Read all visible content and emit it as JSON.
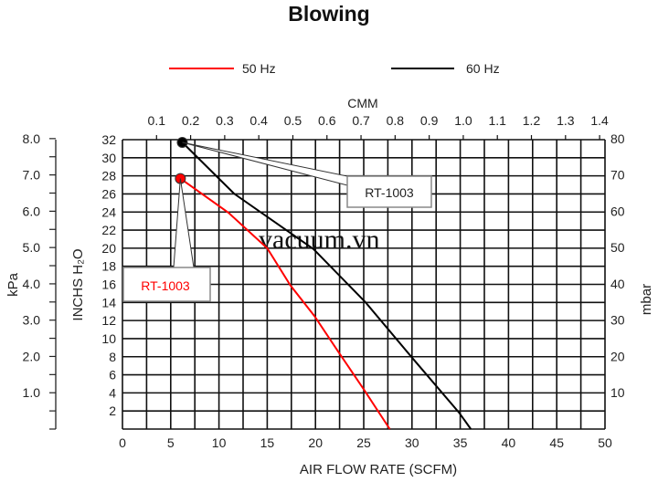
{
  "chart_data": {
    "type": "line",
    "title": "Blowing",
    "xlabel": "AIR FLOW RATE (SCFM)",
    "x2label": "CMM",
    "ylabel": "INCHS H2O",
    "ylabel_display": "INCHS H₂O",
    "y_left_outer_label": "kPa",
    "y_right_label": "mbar",
    "xlim": [
      0,
      50
    ],
    "ylim": [
      0,
      32
    ],
    "grid": true,
    "legend_placement": "top-center",
    "x_ticks": [
      "0",
      "5",
      "10",
      "15",
      "20",
      "25",
      "30",
      "35",
      "40",
      "45",
      "50"
    ],
    "x2_ticks": [
      "0.1",
      "0.2",
      "0.3",
      "0.4",
      "0.5",
      "0.6",
      "0.7",
      "0.8",
      "0.9",
      "1.0",
      "1.1",
      "1.2",
      "1.3",
      "1.4"
    ],
    "y_ticks": [
      "2",
      "4",
      "6",
      "8",
      "10",
      "12",
      "14",
      "16",
      "18",
      "20",
      "22",
      "24",
      "26",
      "28",
      "30",
      "32"
    ],
    "kpa_ticks": [
      "1.0",
      "2.0",
      "3.0",
      "4.0",
      "5.0",
      "6.0",
      "7.0",
      "8.0"
    ],
    "mbar_ticks": [
      "10",
      "20",
      "30",
      "40",
      "50",
      "60",
      "70",
      "80"
    ],
    "series": [
      {
        "name": "50 Hz",
        "color": "#ff0000",
        "x": [
          6.0,
          11.0,
          15.0,
          17.4,
          19.9,
          22.4,
          25.0,
          27.7
        ],
        "y": [
          27.7,
          23.9,
          20.0,
          15.9,
          12.5,
          8.5,
          4.4,
          0
        ]
      },
      {
        "name": "60 Hz",
        "color": "#000000",
        "x": [
          6.2,
          11.6,
          19.8,
          25.2,
          30.0,
          34.9,
          36.1
        ],
        "y": [
          31.7,
          26.0,
          19.9,
          14.0,
          7.9,
          1.8,
          0
        ]
      }
    ],
    "annotations": [
      {
        "text": "RT-1003",
        "series": "60 Hz",
        "color": "#000000"
      },
      {
        "text": "RT-1003",
        "series": "50 Hz",
        "color": "#ff0000"
      }
    ],
    "watermark": "vacuum.vn"
  }
}
